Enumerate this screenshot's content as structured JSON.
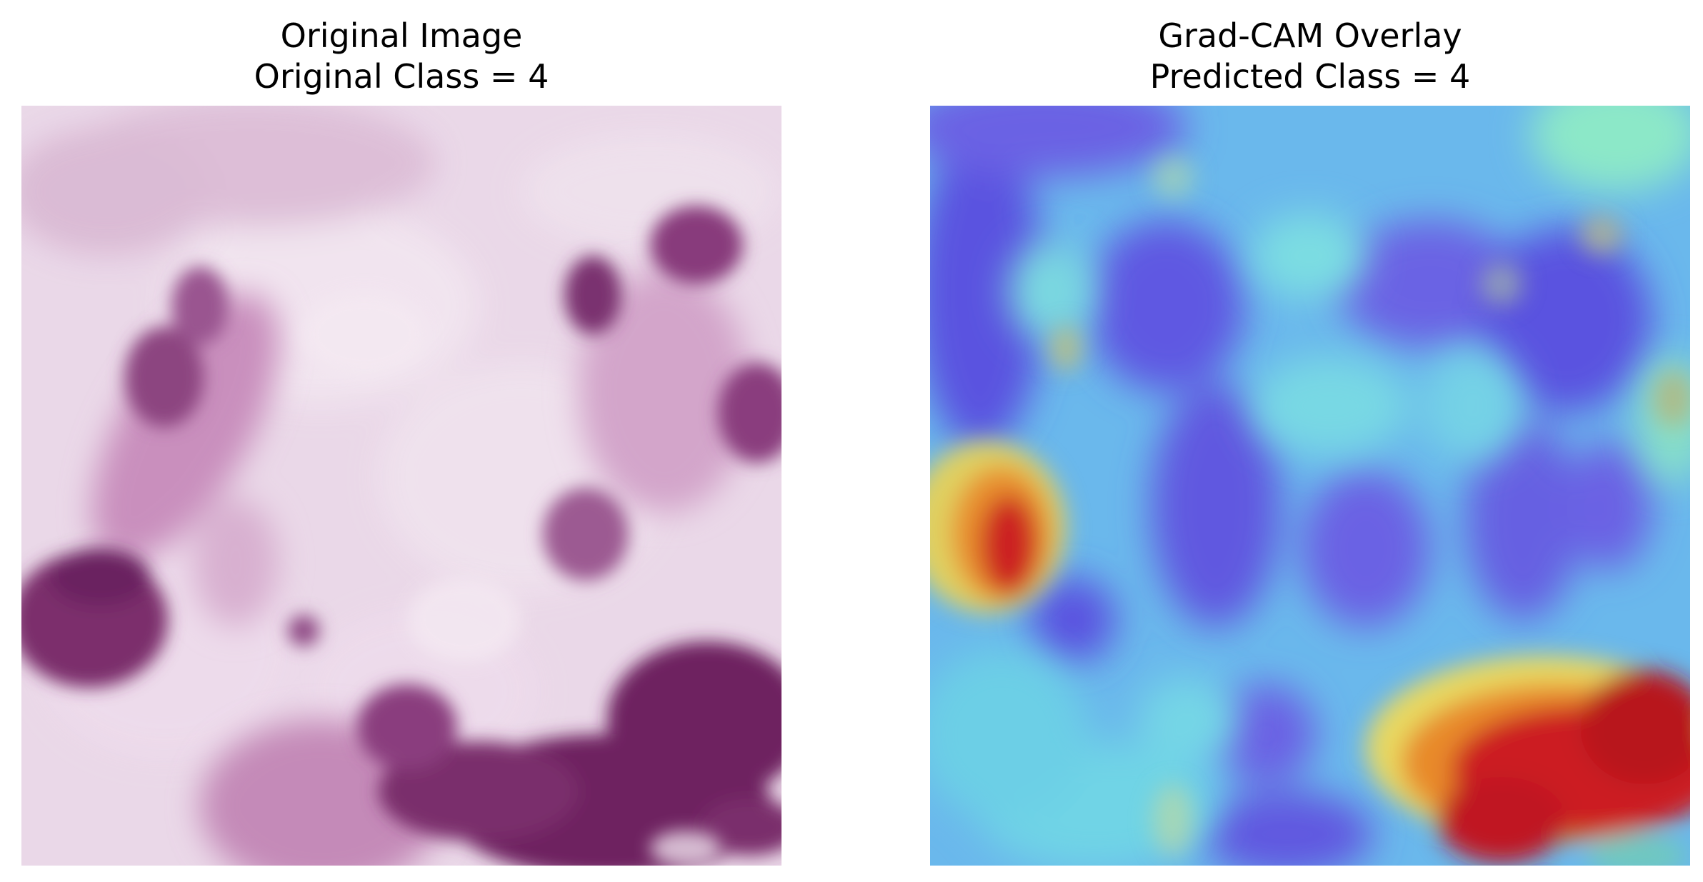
{
  "figure": {
    "left_panel": {
      "title_line1": "Original Image",
      "title_line2": "Original Class = 4"
    },
    "right_panel": {
      "title_line1": "Grad-CAM Overlay",
      "title_line2": "Predicted Class = 4"
    }
  },
  "colors": {
    "tissue_background": "#ead8e8",
    "tissue_stain": "#6e2360",
    "heatmap_low": "#5a52e0",
    "heatmap_mid": "#66d4ea",
    "heatmap_high": "#c8141e"
  }
}
